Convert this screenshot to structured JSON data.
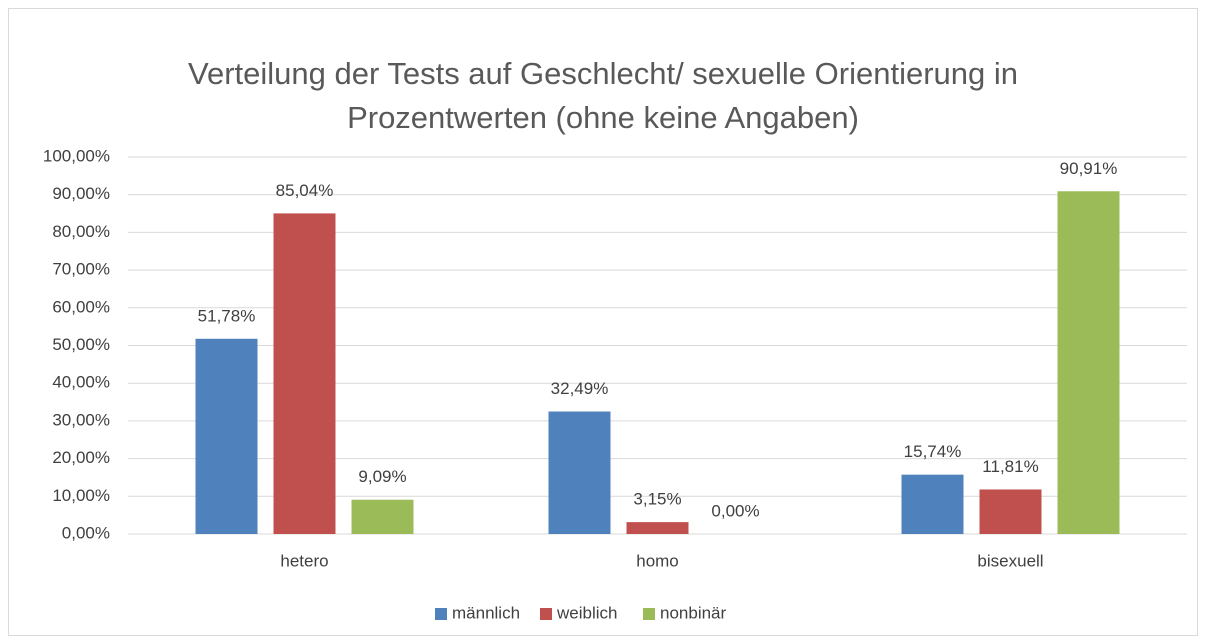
{
  "chart_data": {
    "type": "bar",
    "title": "Verteilung der Tests auf Geschlecht/ sexuelle Orientierung in Prozentwerten (ohne keine Angaben)",
    "categories": [
      "hetero",
      "homo",
      "bisexuell"
    ],
    "series": [
      {
        "name": "männlich",
        "color": "#4f81bd",
        "values": [
          51.78,
          32.49,
          15.74
        ],
        "value_labels": [
          "51,78%",
          "32,49%",
          "15,74%"
        ]
      },
      {
        "name": "weiblich",
        "color": "#c0504d",
        "values": [
          85.04,
          3.15,
          11.81
        ],
        "value_labels": [
          "85,04%",
          "3,15%",
          "11,81%"
        ]
      },
      {
        "name": "nonbinär",
        "color": "#9bbb59",
        "values": [
          9.09,
          0,
          90.91
        ],
        "value_labels": [
          "9,09%",
          "0,00%",
          "90,91%"
        ]
      }
    ],
    "ylim": [
      0,
      100
    ],
    "yticks": [
      {
        "value": 0,
        "label": "0,00%"
      },
      {
        "value": 10,
        "label": "10,00%"
      },
      {
        "value": 20,
        "label": "20,00%"
      },
      {
        "value": 30,
        "label": "30,00%"
      },
      {
        "value": 40,
        "label": "40,00%"
      },
      {
        "value": 50,
        "label": "50,00%"
      },
      {
        "value": 60,
        "label": "60,00%"
      },
      {
        "value": 70,
        "label": "70,00%"
      },
      {
        "value": 80,
        "label": "80,00%"
      },
      {
        "value": 90,
        "label": "90,00%"
      },
      {
        "value": 100,
        "label": "100,00%"
      }
    ],
    "grid": true,
    "legend": "bottom"
  }
}
